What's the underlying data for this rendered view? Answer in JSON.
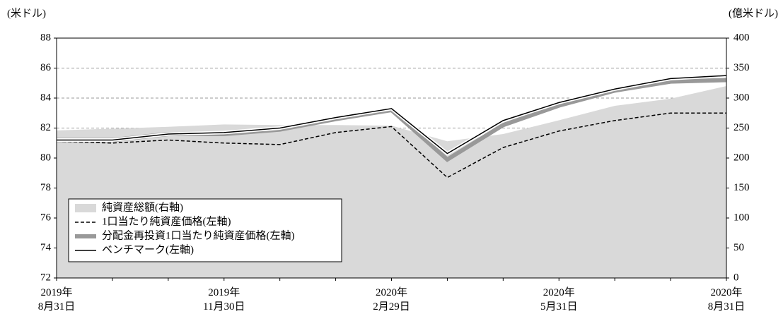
{
  "chart_data": {
    "type": "line",
    "y_label": "(米ドル)",
    "y2_label": "(億米ドル)",
    "categories": [
      "2019年\n8月31日",
      null,
      null,
      "2019年\n11月30日",
      null,
      null,
      "2020年\n2月29日",
      null,
      null,
      "2020年\n5月31日",
      null,
      null,
      "2020年\n8月31日"
    ],
    "ylim": [
      72,
      88
    ],
    "yticks": [
      72,
      74,
      76,
      78,
      80,
      82,
      84,
      86,
      88
    ],
    "y2lim": [
      0,
      400
    ],
    "y2ticks": [
      0,
      50,
      100,
      150,
      200,
      250,
      300,
      350,
      400
    ],
    "grid": true,
    "series": [
      {
        "name": "純資産総額(右軸)",
        "kind": "area",
        "axis": "y2",
        "color": "#d9d9d9",
        "values": [
          246,
          249,
          252,
          256,
          255,
          255,
          254,
          228,
          240,
          263,
          287,
          299,
          320
        ]
      },
      {
        "name": "1口当たり純資産価格(左軸)",
        "kind": "dashed",
        "color": "#000000",
        "values": [
          81.1,
          81.0,
          81.2,
          81.0,
          80.9,
          81.7,
          82.1,
          78.7,
          80.7,
          81.8,
          82.5,
          83.0,
          83.0
        ]
      },
      {
        "name": "分配金再投資1口当たり純資産価格(左軸)",
        "kind": "thick",
        "color": "#999999",
        "values": [
          81.2,
          81.2,
          81.6,
          81.6,
          81.9,
          82.6,
          83.2,
          79.9,
          82.2,
          83.5,
          84.5,
          85.1,
          85.2
        ]
      },
      {
        "name": "ベンチマーク(左軸)",
        "kind": "thin",
        "color": "#000000",
        "values": [
          81.2,
          81.2,
          81.6,
          81.7,
          82.0,
          82.7,
          83.3,
          80.3,
          82.5,
          83.7,
          84.6,
          85.3,
          85.5
        ]
      }
    ]
  }
}
